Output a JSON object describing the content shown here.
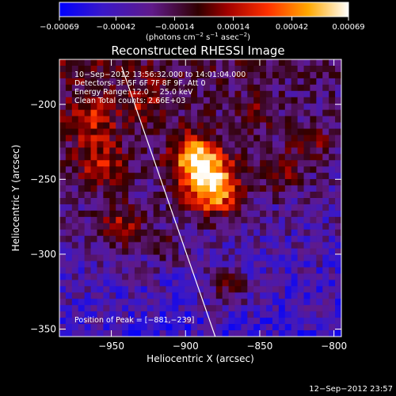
{
  "chart_data": {
    "type": "heatmap",
    "title": "Reconstructed RHESSI Image",
    "xlabel": "Heliocentric X (arcsec)",
    "ylabel": "Heliocentric Y (arcsec)",
    "xlim": [
      -985,
      -795
    ],
    "ylim": [
      -355,
      -170
    ],
    "x_ticks": [
      -950,
      -900,
      -850,
      -800
    ],
    "x_tick_labels": [
      "−950",
      "−900",
      "−850",
      "−800"
    ],
    "y_ticks": [
      -200,
      -250,
      -300,
      -350
    ],
    "y_tick_labels": [
      "−200",
      "−250",
      "−300",
      "−350"
    ],
    "colorbar": {
      "range": [
        -0.00069,
        0.00069
      ],
      "ticks": [
        -0.00069,
        -0.00042,
        -0.00014,
        0.00014,
        0.00042,
        0.00069
      ],
      "tick_labels": [
        "−0.00069",
        "−0.00042",
        "−0.00014",
        "0.00014",
        "0.00042",
        "0.00069"
      ],
      "unit_label_parts": [
        "(photons cm",
        "−2",
        " s",
        "−1",
        " asec",
        "−2",
        ")"
      ]
    },
    "info_lines": [
      "10−Sep−2012 13:56:32.000 to 14:01:04.000",
      "Detectors: 3F 5F 6F 7F 8F 9F, Att 0",
      "Energy Range: 12.0 − 25.0 keV",
      "Clean     Total counts: 2.66E+03"
    ],
    "peak_label": "Position of Peak = [−881,−239]",
    "peak_position": [
      -881,
      -239
    ],
    "limb_line": [
      [
        -943,
        -175
      ],
      [
        -880,
        -355
      ]
    ]
  },
  "footer": {
    "date": "12−Sep−2012 23:57"
  }
}
